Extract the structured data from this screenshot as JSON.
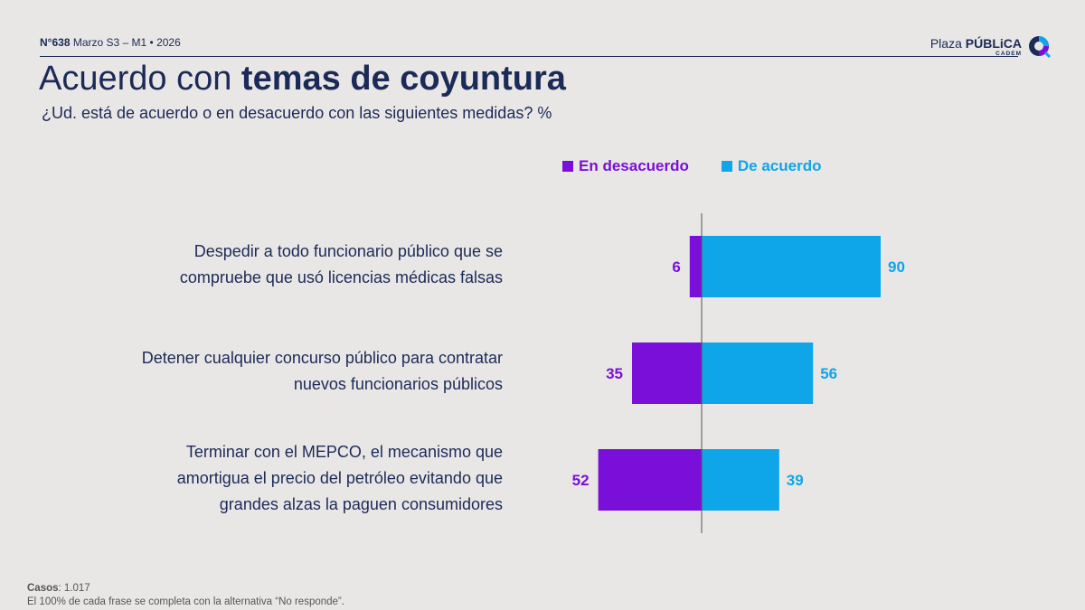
{
  "header": {
    "issue_number": "N°638",
    "issue_period": "Marzo S3 – M1 • 2026",
    "brand_light": "Plaza ",
    "brand_bold": "PÚBLiCA",
    "brand_sub": "CADEM"
  },
  "title": {
    "light": "Acuerdo con ",
    "bold": "temas de coyuntura"
  },
  "subtitle": "¿Ud. está de acuerdo o en desacuerdo con las siguientes medidas? %",
  "footer": {
    "cases_label": "Casos",
    "cases_value": ": 1.017",
    "note": "El 100% de cada frase se completa con la alternativa “No responde”."
  },
  "colors": {
    "disagree": "#7a0fd9",
    "agree": "#0ea5e9",
    "text": "#1c2a57"
  },
  "chart_data": {
    "type": "bar",
    "orientation": "horizontal-diverging",
    "categories": [
      "Despedir a todo funcionario público que se compruebe que usó licencias médicas falsas",
      "Detener cualquier concurso público para contratar nuevos funcionarios públicos",
      "Terminar con el MEPCO, el mecanismo que amortigua el precio del petróleo evitando que grandes alzas la paguen consumidores"
    ],
    "category_lines": [
      [
        "Despedir a todo funcionario público que se",
        "compruebe que usó licencias médicas falsas"
      ],
      [
        "Detener cualquier concurso público para contratar",
        "nuevos funcionarios públicos"
      ],
      [
        "Terminar con el MEPCO, el mecanismo que",
        "amortigua el precio del petróleo evitando que",
        "grandes alzas la paguen consumidores"
      ]
    ],
    "series": [
      {
        "name": "En desacuerdo",
        "values": [
          6,
          35,
          52
        ]
      },
      {
        "name": "De acuerdo",
        "values": [
          90,
          56,
          39
        ]
      }
    ],
    "legend": "top"
  }
}
